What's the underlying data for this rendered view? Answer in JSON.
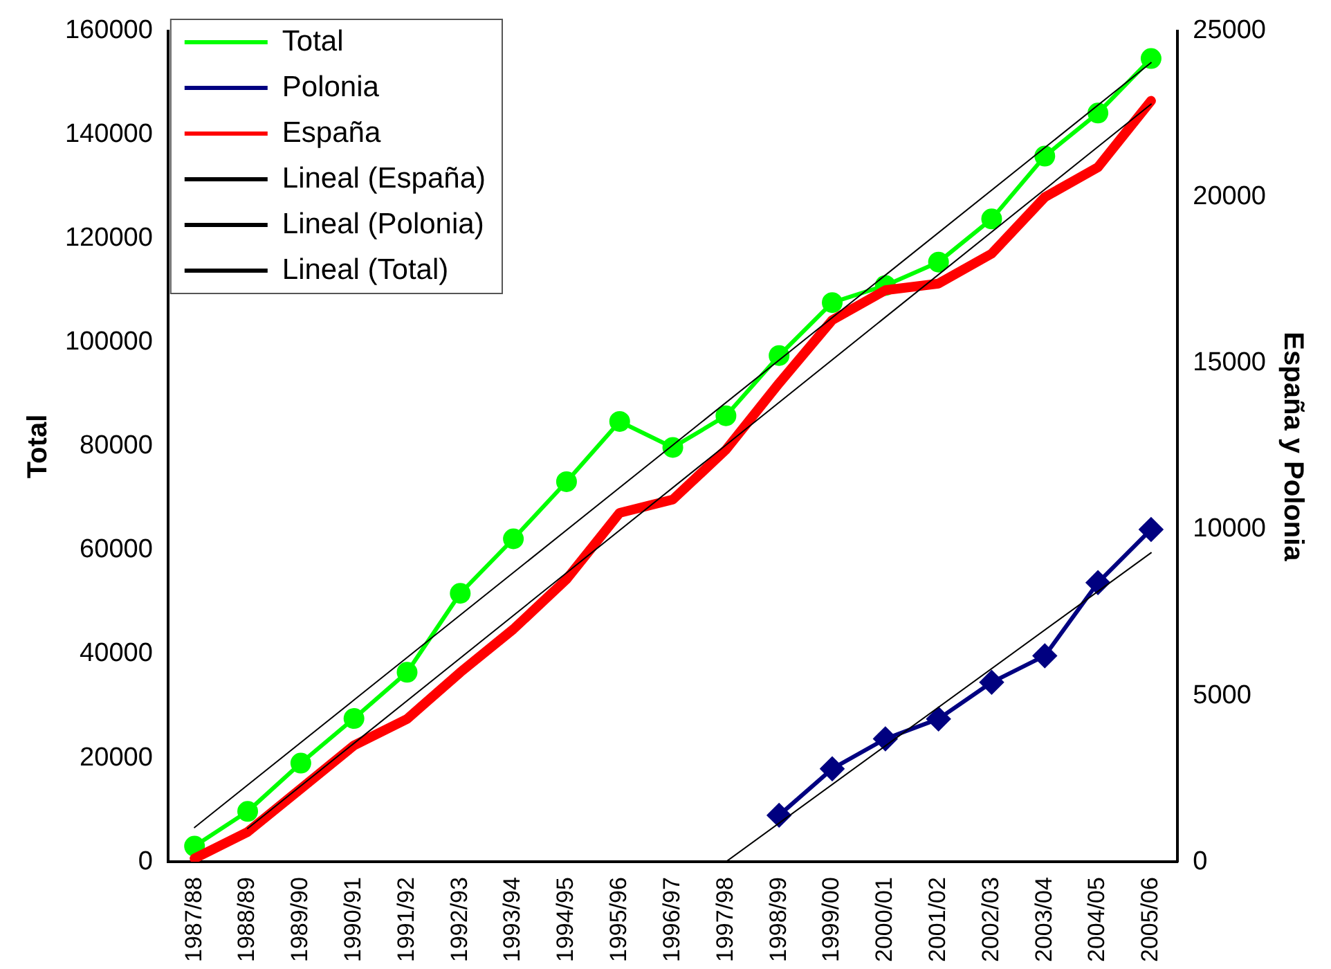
{
  "chart_data": {
    "type": "line",
    "xlabel": null,
    "ylabel": "Total",
    "y2label": "España y Polonia",
    "categories": [
      "1987/88",
      "1988/89",
      "1989/90",
      "1990/91",
      "1991/92",
      "1992/93",
      "1993/94",
      "1994/95",
      "1995/96",
      "1996/97",
      "1997/98",
      "1998/99",
      "1999/00",
      "2000/01",
      "2001/02",
      "2002/03",
      "2003/04",
      "2004/05",
      "2005/06"
    ],
    "series": [
      {
        "name": "Total",
        "color": "#00ff00",
        "marker": "circle",
        "values": [
          3000,
          9700,
          19000,
          27600,
          36500,
          51700,
          62200,
          73200,
          84800,
          79800,
          85900,
          97500,
          107700,
          111000,
          115500,
          123800,
          135900,
          144200,
          154700
        ]
      },
      {
        "name": "Polonia",
        "color": "#000080",
        "marker": "diamond",
        "axis": "y2",
        "values": [
          null,
          null,
          null,
          null,
          null,
          null,
          null,
          null,
          null,
          null,
          null,
          1400,
          2800,
          3700,
          4300,
          5400,
          6200,
          8400,
          10000
        ]
      },
      {
        "name": "España",
        "color": "#ff0000",
        "marker": "none",
        "axis": "y2",
        "values": [
          100,
          900,
          2200,
          3500,
          4300,
          5700,
          7000,
          8500,
          10500,
          10900,
          12400,
          14400,
          16300,
          17200,
          17400,
          18300,
          20000,
          20900,
          22900
        ]
      },
      {
        "name": "Lineal (España)",
        "color": "#000000",
        "marker": "none",
        "axis": "y2",
        "x": [
          "1988/89",
          "2005/06"
        ],
        "values": [
          1000,
          22800
        ]
      },
      {
        "name": "Lineal (Polonia)",
        "color": "#000000",
        "marker": "none",
        "axis": "y2",
        "x": [
          "1997/98",
          "2005/06"
        ],
        "values": [
          0,
          9300
        ]
      },
      {
        "name": "Lineal (Total)",
        "color": "#000000",
        "marker": "none",
        "x": [
          "1987/88",
          "2005/06"
        ],
        "values": [
          6600,
          153900
        ]
      }
    ],
    "ylim": [
      0,
      160000
    ],
    "yticks": [
      0,
      20000,
      40000,
      60000,
      80000,
      100000,
      120000,
      140000,
      160000
    ],
    "y2lim": [
      0,
      25000
    ],
    "y2ticks": [
      0,
      5000,
      10000,
      15000,
      20000,
      25000
    ],
    "grid": false,
    "legend": "top left",
    "line_style": "solid"
  }
}
